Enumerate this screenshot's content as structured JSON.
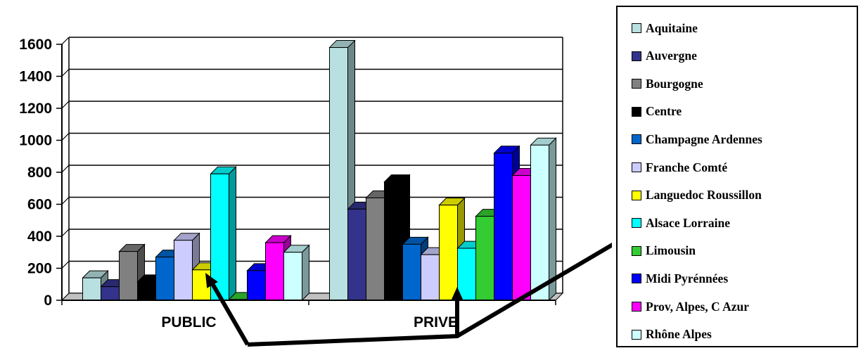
{
  "chart_data": {
    "type": "bar",
    "title": "",
    "xlabel": "",
    "ylabel": "",
    "ylim": [
      0,
      1600
    ],
    "yticks": [
      0,
      200,
      400,
      600,
      800,
      1000,
      1200,
      1400,
      1600
    ],
    "ytick_labels": [
      "0",
      "200",
      "400",
      "600",
      "800",
      "1000",
      "1200",
      "1400",
      "1600"
    ],
    "grid": true,
    "legend_position": "right",
    "style": "3d-clustered",
    "categories": [
      "PUBLIC",
      "PRIVE"
    ],
    "series": [
      {
        "name": "Aquitaine",
        "color": "#b8e0e0",
        "values": [
          140,
          1580
        ]
      },
      {
        "name": "Auvergne",
        "color": "#33338c",
        "values": [
          85,
          570
        ]
      },
      {
        "name": "Bourgogne",
        "color": "#808080",
        "values": [
          305,
          640
        ]
      },
      {
        "name": "Centre",
        "color": "#000000",
        "values": [
          115,
          740
        ]
      },
      {
        "name": "Champagne Ardennes",
        "color": "#0066cc",
        "values": [
          270,
          350
        ]
      },
      {
        "name": "Franche Comté",
        "color": "#ccccff",
        "values": [
          375,
          285
        ]
      },
      {
        "name": "Languedoc Roussillon",
        "color": "#ffff00",
        "values": [
          190,
          595
        ]
      },
      {
        "name": "Alsace Lorraine",
        "color": "#00ffff",
        "values": [
          790,
          325
        ]
      },
      {
        "name": "Limousin",
        "color": "#33cc33",
        "values": [
          5,
          525
        ]
      },
      {
        "name": "Midi Pyrénnées",
        "color": "#0000ff",
        "values": [
          185,
          920
        ]
      },
      {
        "name": "Prov, Alpes, C Azur",
        "color": "#ff00ff",
        "values": [
          360,
          780
        ]
      },
      {
        "name": "Rhône Alpes",
        "color": "#ccffff",
        "values": [
          300,
          970
        ]
      }
    ]
  }
}
